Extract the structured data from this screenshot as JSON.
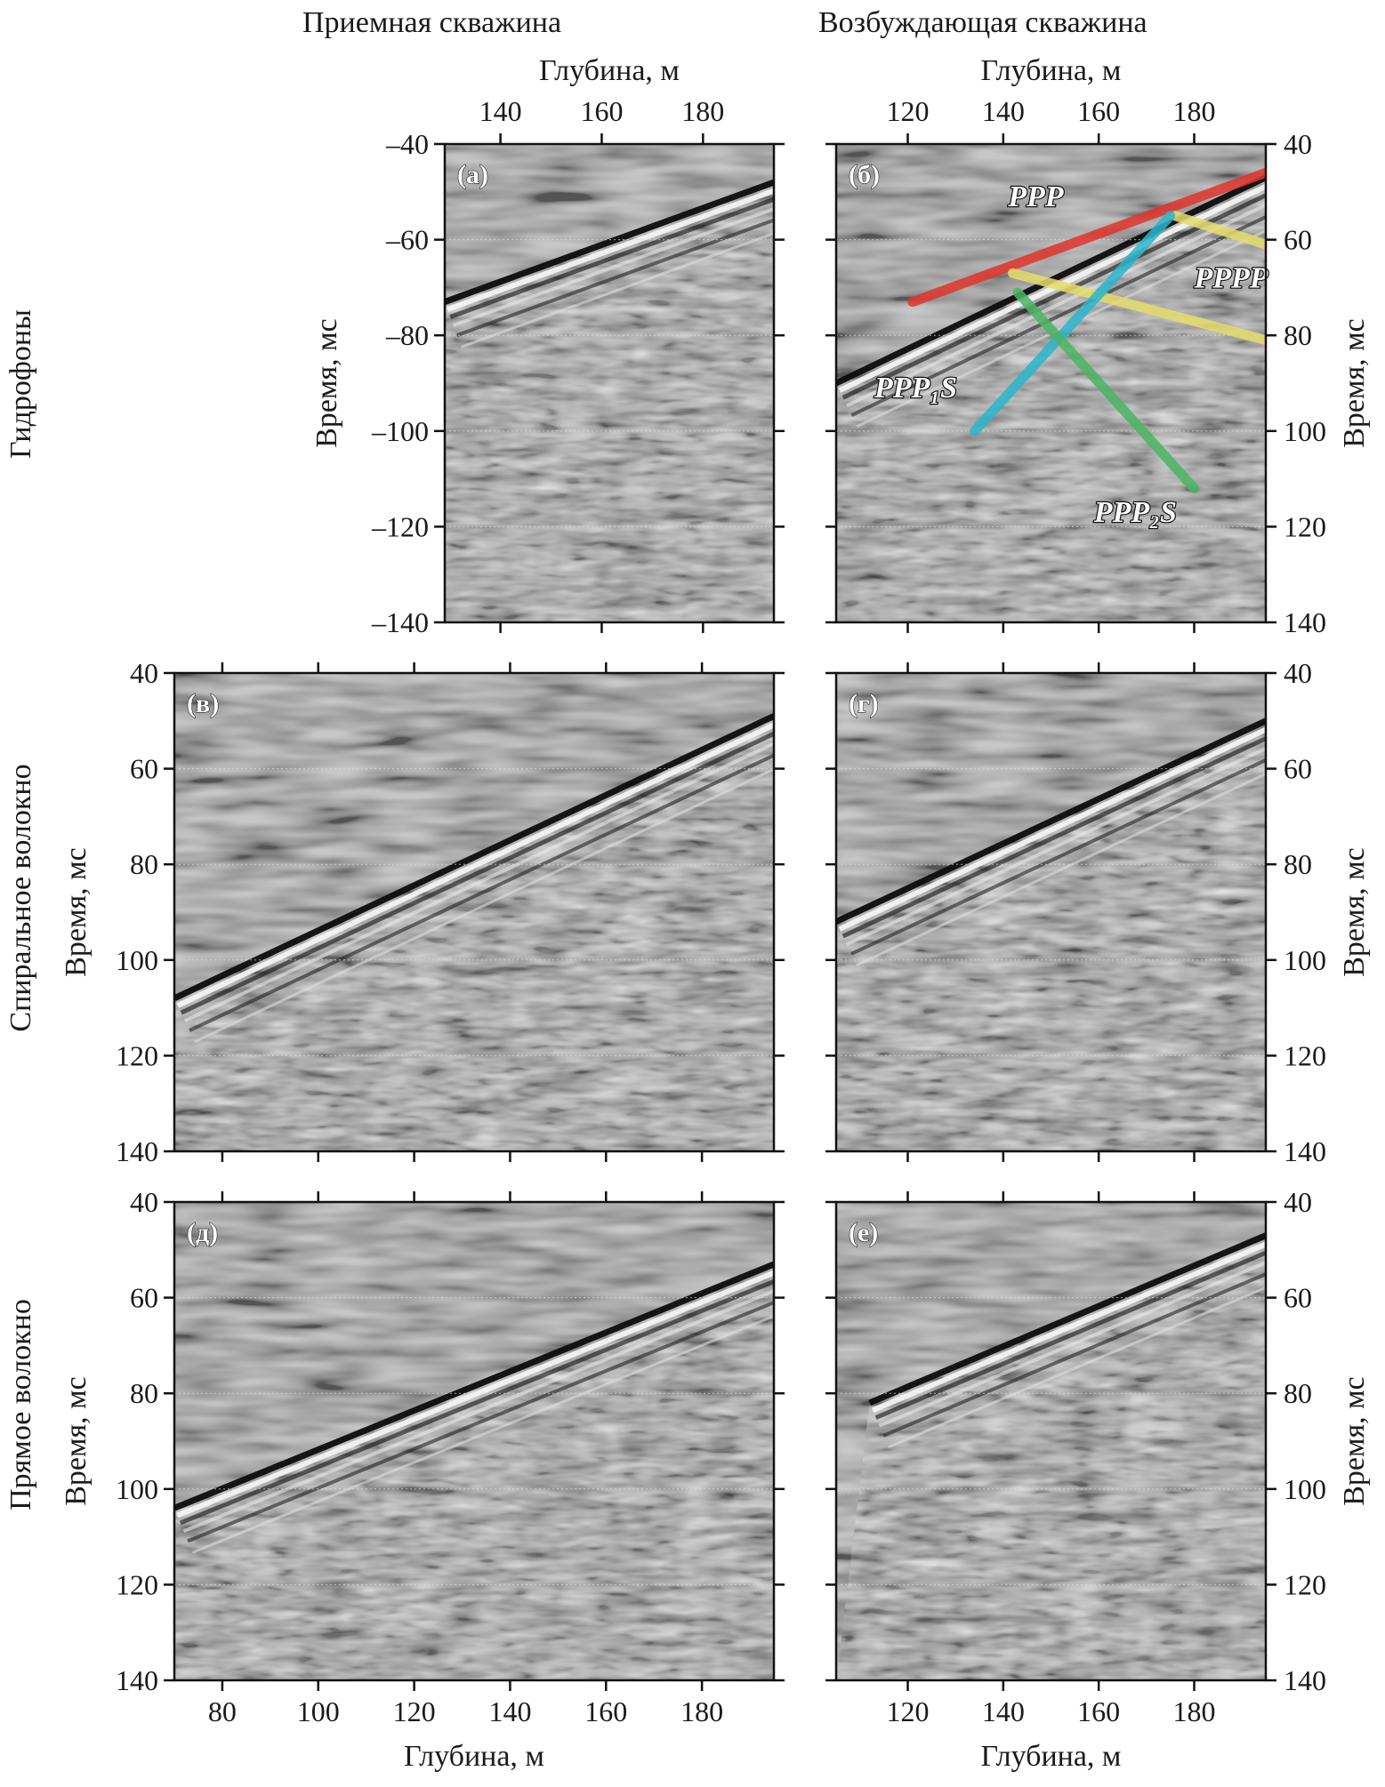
{
  "figure": {
    "column_titles": [
      "Приемная скважина",
      "Возбуждающая скважина"
    ],
    "row_titles": [
      "Гидрофоны",
      "Спиральное волокно",
      "Прямое волокно"
    ],
    "depth_axis_label": "Глубина, м",
    "time_axis_label": "Время, мс"
  },
  "chart_data": [
    {
      "type": "heatmap",
      "panel": "(а)",
      "row": "Гидрофоны",
      "column": "Приемная скважина",
      "xlabel": "Глубина, м",
      "ylabel": "Время, мс",
      "x_axis_position": "top",
      "xlim": [
        129,
        194
      ],
      "xticks": [
        140,
        160,
        180
      ],
      "xtick_labels": [
        "140",
        "160",
        "180"
      ],
      "ylim": [
        -40,
        -140
      ],
      "yticks": [
        -40,
        -60,
        -80,
        -100,
        -120,
        -140
      ],
      "ytick_labels": [
        "–40",
        "–60",
        "–80",
        "–100",
        "–120",
        "–140"
      ],
      "first_arrival": [
        [
          129,
          -73
        ],
        [
          194,
          -48
        ]
      ],
      "annotations": []
    },
    {
      "type": "heatmap",
      "panel": "(б)",
      "row": "Гидрофоны",
      "column": "Возбуждающая скважина",
      "xlabel": "Глубина, м",
      "ylabel": "Время, мс",
      "x_axis_position": "top",
      "y_axis_position": "right",
      "xlim": [
        105,
        195
      ],
      "xticks": [
        120,
        140,
        160,
        180
      ],
      "xtick_labels": [
        "120",
        "140",
        "160",
        "180"
      ],
      "ylim": [
        40,
        140
      ],
      "yticks": [
        40,
        60,
        80,
        100,
        120,
        140
      ],
      "ytick_labels": [
        "40",
        "60",
        "80",
        "100",
        "120",
        "140"
      ],
      "first_arrival": [
        [
          105,
          90
        ],
        [
          195,
          47
        ]
      ],
      "annotations": [
        {
          "label": "PPP",
          "color": "#e0342b",
          "line": [
            [
              121,
              73
            ],
            [
              195,
              46
            ]
          ],
          "text_at": [
            141,
            53
          ]
        },
        {
          "label": "PPPP",
          "color": "#e6dd6a",
          "line": [
            [
              142,
              67
            ],
            [
              195,
              81
            ]
          ],
          "text_at": [
            180,
            70
          ],
          "extra_line": [
            [
              176,
              55
            ],
            [
              195,
              61
            ]
          ]
        },
        {
          "label": "PPP₁S",
          "color": "#2bb6cc",
          "line": [
            [
              134,
              100
            ],
            [
              175,
              55
            ]
          ],
          "text_at": [
            113,
            93
          ]
        },
        {
          "label": "PPP₂S",
          "color": "#4bb563",
          "line": [
            [
              143,
              71
            ],
            [
              180,
              112
            ]
          ],
          "text_at": [
            159,
            119
          ]
        }
      ]
    },
    {
      "type": "heatmap",
      "panel": "(в)",
      "row": "Спиральное волокно",
      "column": "Приемная скважина",
      "xlabel": "Глубина, м",
      "ylabel": "Время, мс",
      "xlim": [
        70,
        195
      ],
      "xticks": [
        80,
        100,
        120,
        140,
        160,
        180
      ],
      "ylim": [
        40,
        140
      ],
      "yticks": [
        40,
        60,
        80,
        100,
        120,
        140
      ],
      "ytick_labels": [
        "40",
        "60",
        "80",
        "100",
        "120",
        "140"
      ],
      "first_arrival": [
        [
          70,
          108
        ],
        [
          195,
          49
        ]
      ],
      "annotations": []
    },
    {
      "type": "heatmap",
      "panel": "(г)",
      "row": "Спиральное волокно",
      "column": "Возбуждающая скважина",
      "xlabel": "Глубина, м",
      "ylabel": "Время, мс",
      "y_axis_position": "right",
      "xlim": [
        105,
        195
      ],
      "xticks": [
        120,
        140,
        160,
        180
      ],
      "ylim": [
        40,
        140
      ],
      "yticks": [
        40,
        60,
        80,
        100,
        120,
        140
      ],
      "ytick_labels": [
        "40",
        "60",
        "80",
        "100",
        "120",
        "140"
      ],
      "first_arrival": [
        [
          105,
          92
        ],
        [
          195,
          50
        ]
      ],
      "annotations": []
    },
    {
      "type": "heatmap",
      "panel": "(д)",
      "row": "Прямое волокно",
      "column": "Приемная скважина",
      "xlabel": "Глубина, м",
      "ylabel": "Время, мс",
      "xlim": [
        70,
        195
      ],
      "xticks": [
        80,
        100,
        120,
        140,
        160,
        180
      ],
      "xtick_labels": [
        "80",
        "100",
        "120",
        "140",
        "160",
        "180"
      ],
      "ylim": [
        40,
        140
      ],
      "yticks": [
        40,
        60,
        80,
        100,
        120,
        140
      ],
      "ytick_labels": [
        "40",
        "60",
        "80",
        "100",
        "120",
        "140"
      ],
      "first_arrival": [
        [
          70,
          104
        ],
        [
          195,
          53
        ]
      ],
      "annotations": []
    },
    {
      "type": "heatmap",
      "panel": "(е)",
      "row": "Прямое волокно",
      "column": "Возбуждающая скважина",
      "xlabel": "Глубина, м",
      "ylabel": "Время, мс",
      "y_axis_position": "right",
      "xlim": [
        105,
        195
      ],
      "xticks": [
        120,
        140,
        160,
        180
      ],
      "xtick_labels": [
        "120",
        "140",
        "160",
        "180"
      ],
      "ylim": [
        40,
        140
      ],
      "yticks": [
        40,
        60,
        80,
        100,
        120,
        140
      ],
      "ytick_labels": [
        "40",
        "60",
        "80",
        "100",
        "120",
        "140"
      ],
      "first_arrival": [
        [
          112,
          82
        ],
        [
          195,
          47
        ]
      ],
      "annotations": []
    }
  ]
}
